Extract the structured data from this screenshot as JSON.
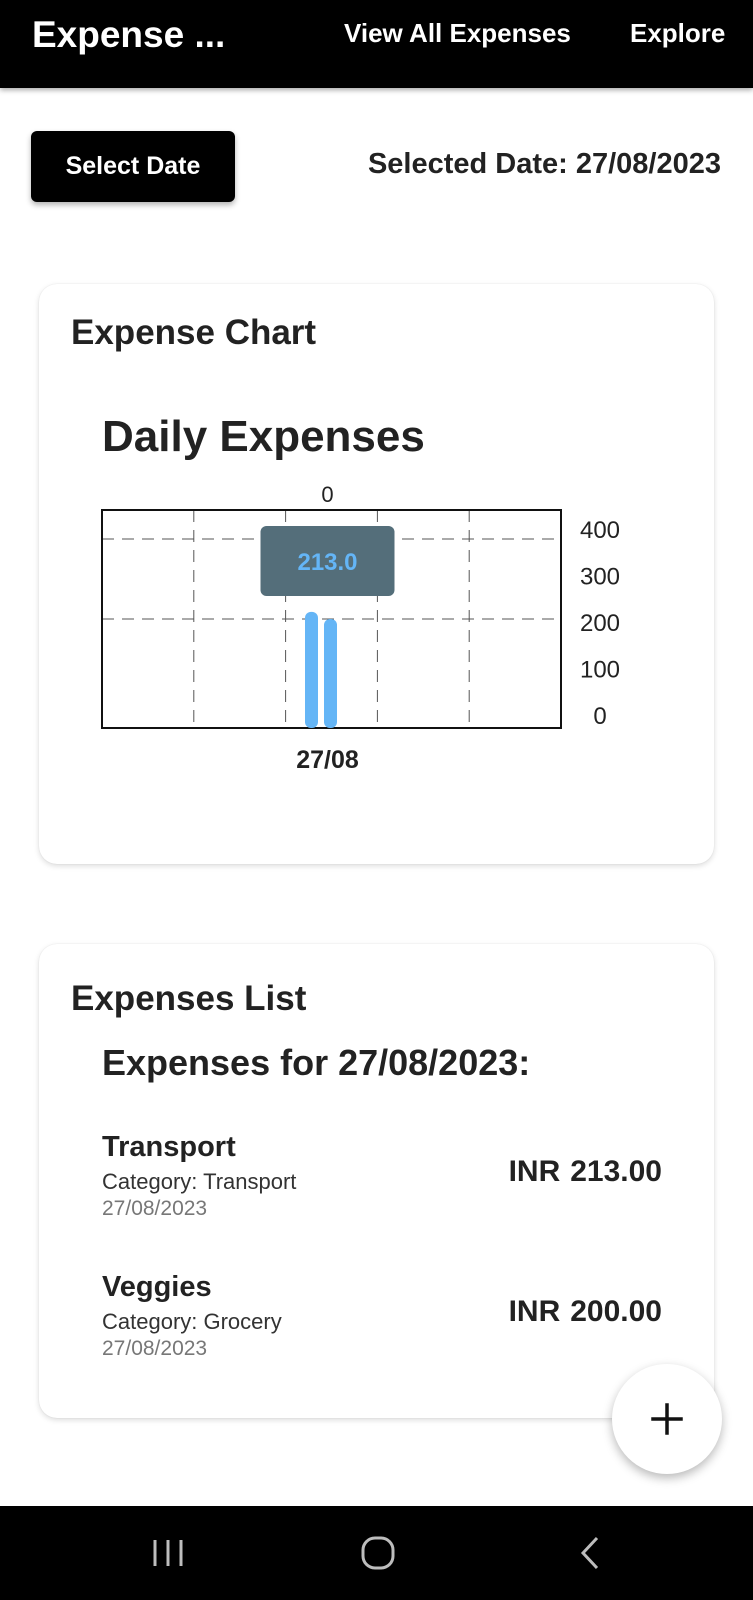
{
  "appbar": {
    "title": "Expense ...",
    "nav": [
      "View All Expenses",
      "Explore"
    ]
  },
  "date_picker": {
    "button_label": "Select Date",
    "selected_label": "Selected Date: 27/08/2023"
  },
  "chart_card": {
    "title": "Expense Chart",
    "heading": "Daily Expenses"
  },
  "chart_data": {
    "type": "bar",
    "title": "Daily Expenses",
    "categories": [
      "27/08"
    ],
    "series": [
      {
        "values": [
          213.0
        ]
      },
      {
        "values": [
          200.0
        ]
      }
    ],
    "top_axis_labels": [
      "0"
    ],
    "y_ticks": [
      "400",
      "300",
      "200",
      "100",
      "0"
    ],
    "ylim": [
      0,
      400
    ],
    "tooltip": "213.0",
    "bar_color": "#64b5f6",
    "tooltip_color": "#546e7a",
    "tooltip_text_color": "#64b5f6",
    "grid": true,
    "y_axis_side": "right"
  },
  "list_card": {
    "title": "Expenses List",
    "heading": "Expenses for 27/08/2023:",
    "items": [
      {
        "name": "Transport",
        "category": "Category: Transport",
        "date": "27/08/2023",
        "currency": "INR",
        "amount": "213.00"
      },
      {
        "name": "Veggies",
        "category": "Category: Grocery",
        "date": "27/08/2023",
        "currency": "INR",
        "amount": "200.00"
      }
    ]
  },
  "fab": {
    "icon": "plus-icon",
    "label": "+"
  },
  "system_nav": {
    "icons": [
      "recent-apps-icon",
      "home-icon",
      "back-icon"
    ]
  }
}
